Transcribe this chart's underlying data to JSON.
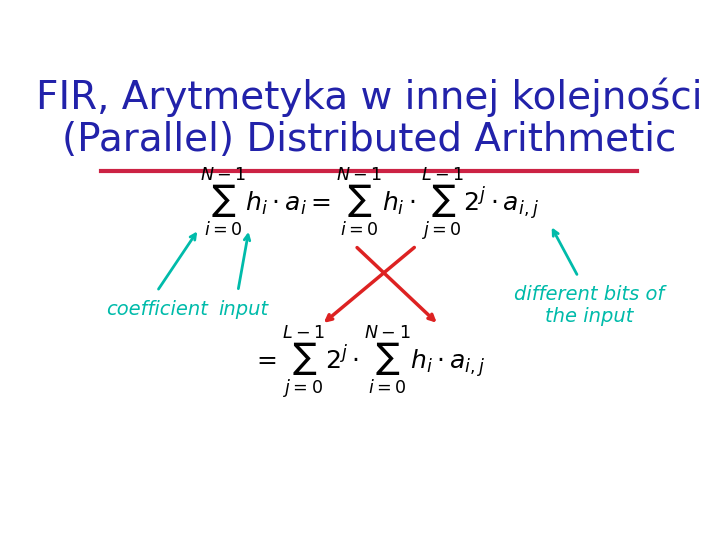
{
  "title_line1": "FIR, Arytmetyka w innej kolejności",
  "title_line2": "(Parallel) Distributed Arithmetic",
  "title_color": "#2222aa",
  "title_fontsize": 28,
  "bg_color": "#ffffff",
  "separator_color": "#cc2244",
  "eq_color": "#000000",
  "eq1_fontsize": 18,
  "eq2_fontsize": 18,
  "arrow_color_cyan": "#00bbaa",
  "arrow_color_red": "#dd2222",
  "label_color_cyan": "#00bbaa",
  "label_coefficient": "coefficient",
  "label_input": "input",
  "label_diff_bits": "different bits of\nthe input",
  "label_fontsize": 14
}
